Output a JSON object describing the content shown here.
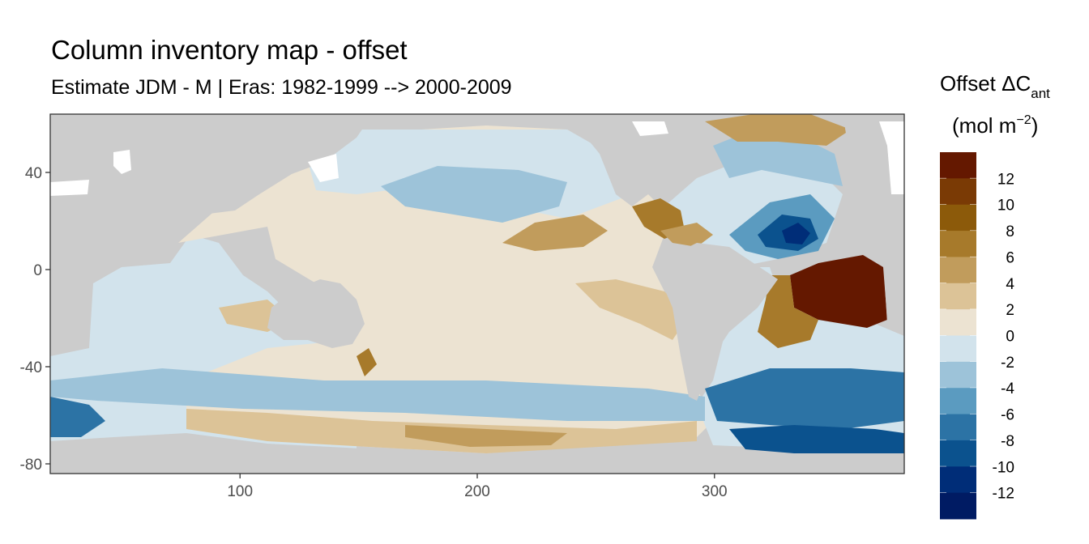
{
  "title": "Column inventory map - offset",
  "subtitle": "Estimate JDM - M | Eras: 1982-1999 --> 2000-2009",
  "legend": {
    "title_line1_prefix": "Offset ΔC",
    "title_line1_sub": "ant",
    "title_line2_prefix": "(mol m",
    "title_line2_sup": "−2",
    "title_line2_suffix": ")",
    "bins": [
      {
        "label": "12",
        "color": "#641800"
      },
      {
        "label": "10",
        "color": "#7a3a05"
      },
      {
        "label": "8",
        "color": "#8c5a0a"
      },
      {
        "label": "6",
        "color": "#a77a2b"
      },
      {
        "label": "4",
        "color": "#c19c5c"
      },
      {
        "label": "2",
        "color": "#dcc397"
      },
      {
        "label": "0",
        "color": "#ece3d2"
      },
      {
        "label": "-2",
        "color": "#d2e3ec"
      },
      {
        "label": "-4",
        "color": "#9dc3d9"
      },
      {
        "label": "-6",
        "color": "#5b9bc0"
      },
      {
        "label": "-8",
        "color": "#2c73a5"
      },
      {
        "label": "-10",
        "color": "#0b528e"
      },
      {
        "label": "-12",
        "color": "#002d78"
      },
      {
        "label": "",
        "color": "#001b63"
      }
    ]
  },
  "axes": {
    "x_ticks": [
      {
        "value": 100,
        "label": "100"
      },
      {
        "value": 200,
        "label": "200"
      },
      {
        "value": 300,
        "label": "300"
      }
    ],
    "y_ticks": [
      {
        "value": 40,
        "label": "40"
      },
      {
        "value": 0,
        "label": "0"
      },
      {
        "value": -40,
        "label": "-40"
      },
      {
        "value": -80,
        "label": "-80"
      }
    ],
    "x_range": [
      20,
      380
    ],
    "y_range": [
      -84,
      64
    ]
  },
  "colors": {
    "land": "#cccccc",
    "panel_border": "#333333"
  }
}
